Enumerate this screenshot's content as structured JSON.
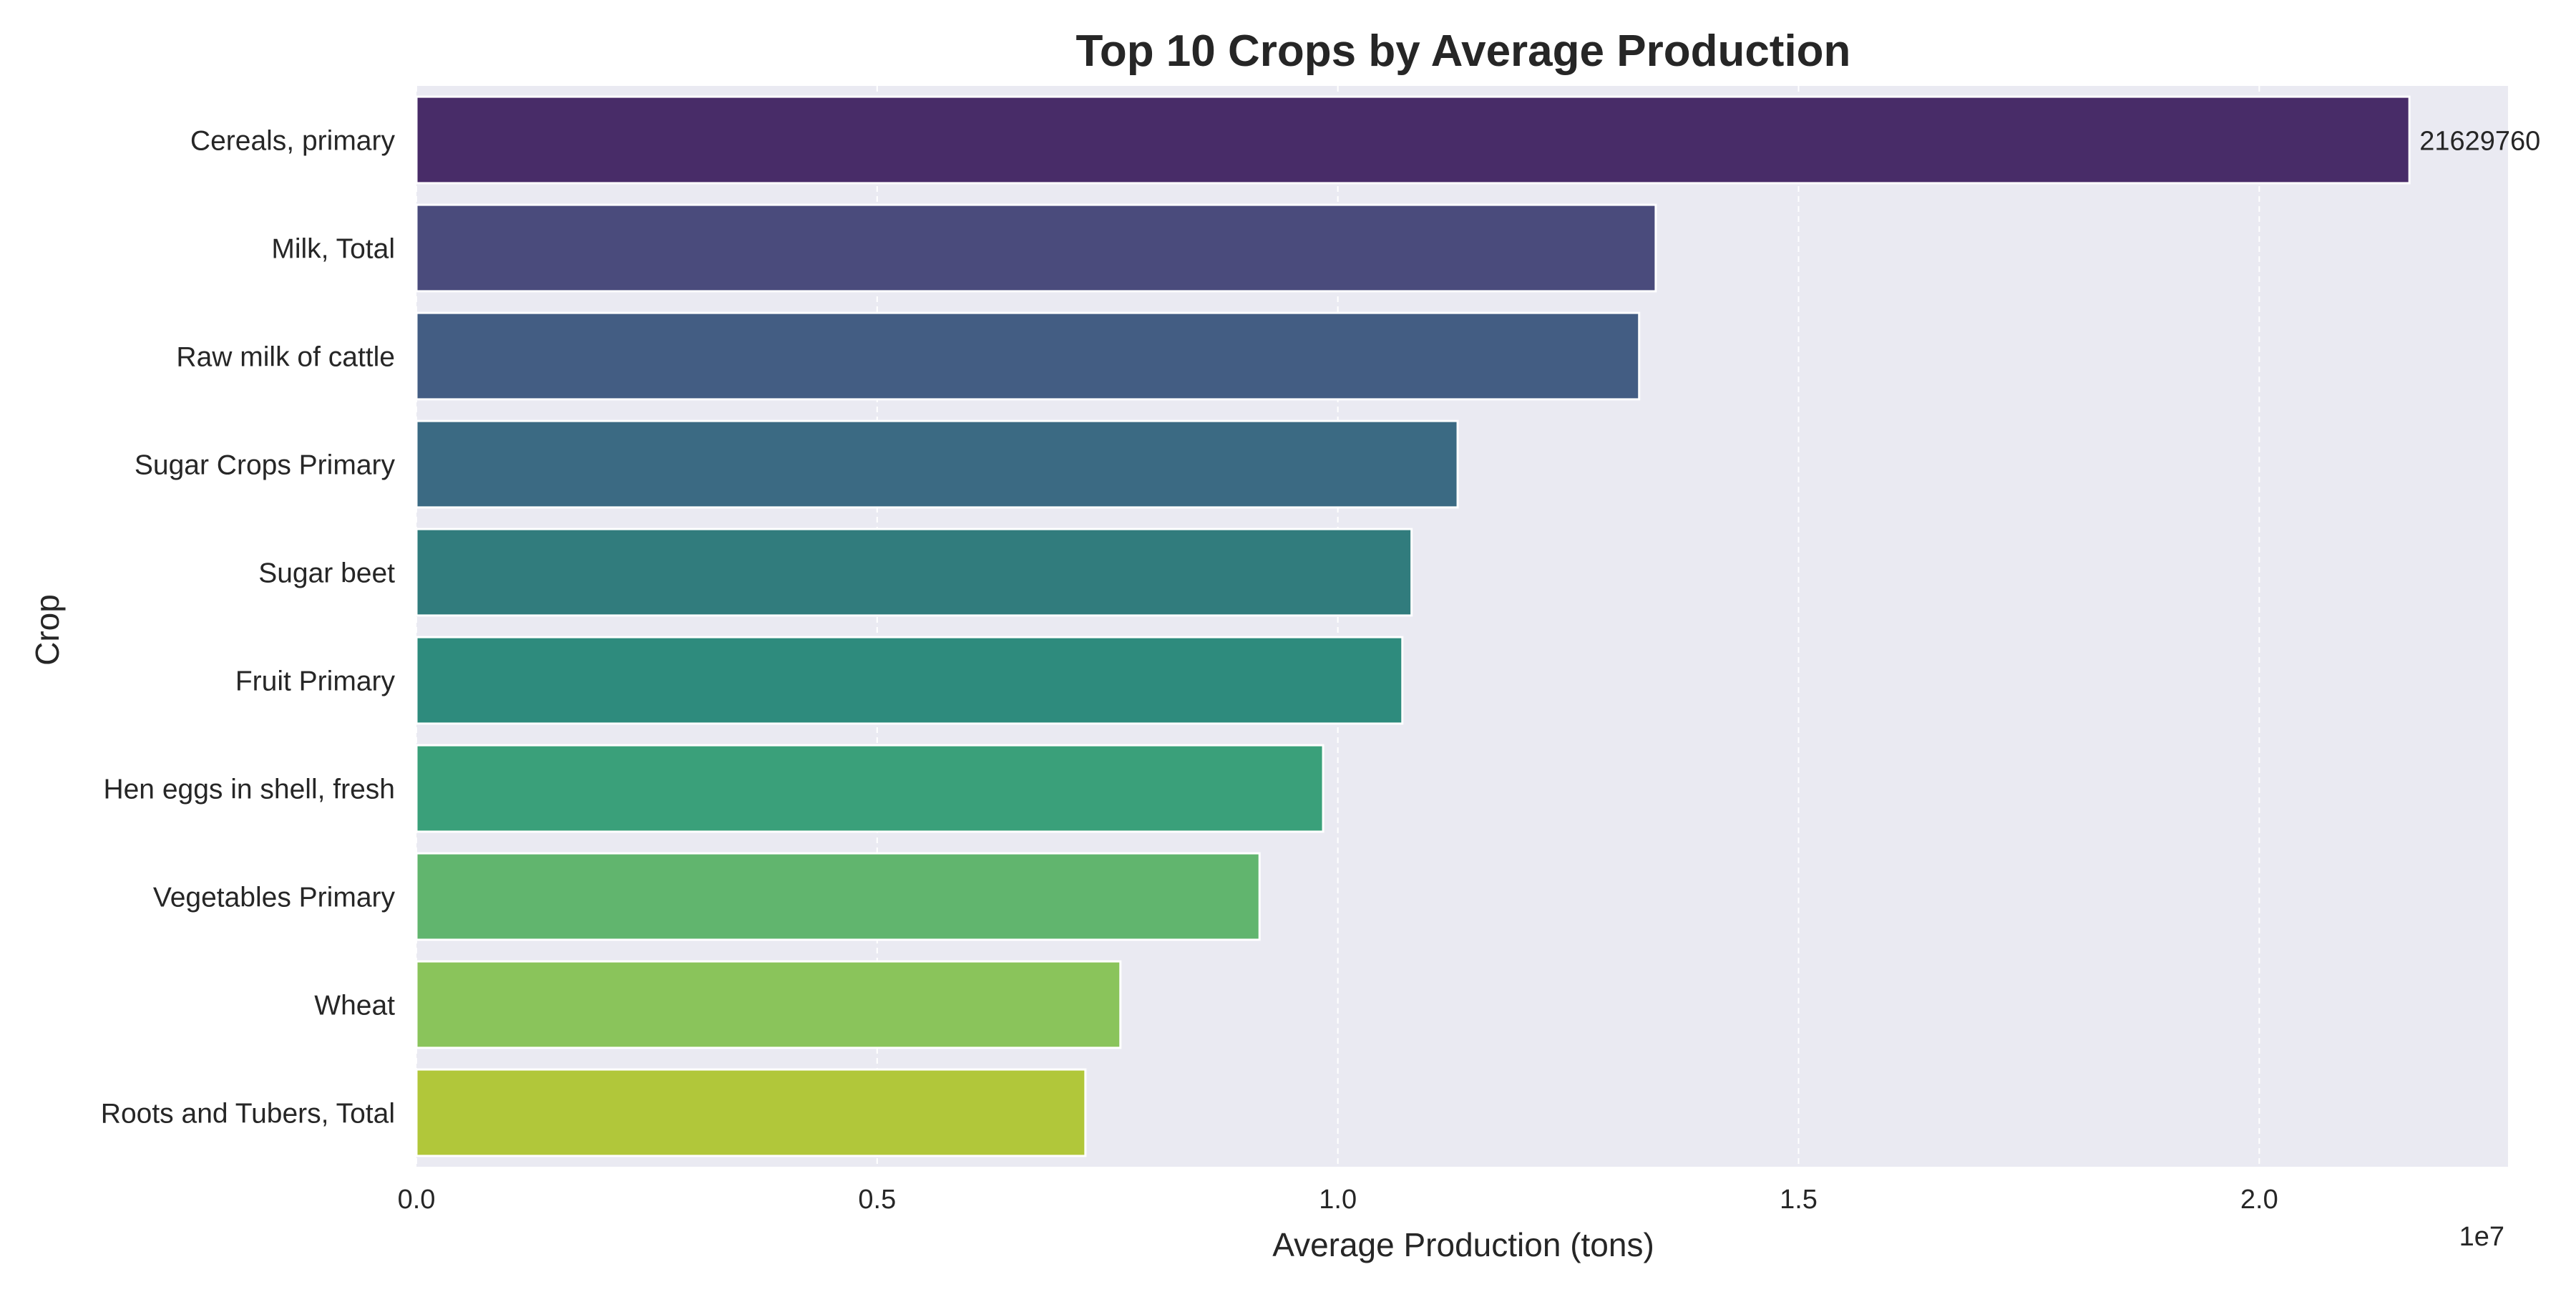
{
  "chart_data": {
    "type": "bar",
    "orientation": "horizontal",
    "title": "Top 10 Crops by Average Production",
    "xlabel": "Average Production (tons)",
    "ylabel": "Crop",
    "x_scale_label": "1e7",
    "xlim": [
      0,
      22700000
    ],
    "x_ticks": [
      0,
      5000000,
      10000000,
      15000000,
      20000000
    ],
    "x_tick_labels": [
      "0.0",
      "0.5",
      "1.0",
      "1.5",
      "2.0"
    ],
    "grid": true,
    "legend": "none",
    "categories": [
      "Cereals, primary",
      "Milk, Total",
      "Raw milk of cattle",
      "Sugar Crops Primary",
      "Sugar beet",
      "Fruit Primary",
      "Hen eggs in shell, fresh",
      "Vegetables Primary",
      "Wheat",
      "Roots and Tubers, Total"
    ],
    "values": [
      21629760,
      13450000,
      13270000,
      11300000,
      10800000,
      10700000,
      9840000,
      9150000,
      7640000,
      7260000
    ],
    "annotations": [
      {
        "category": "Cereals, primary",
        "text": "21629760"
      }
    ],
    "colors": [
      "#482c68",
      "#4a4b7c",
      "#435d83",
      "#3b6a83",
      "#317c7d",
      "#2e8b7d",
      "#3aa07a",
      "#61b56e",
      "#8ac45b",
      "#b1c73a"
    ],
    "background_color": "#eaeaf2",
    "grid_color": "#ffffff"
  }
}
